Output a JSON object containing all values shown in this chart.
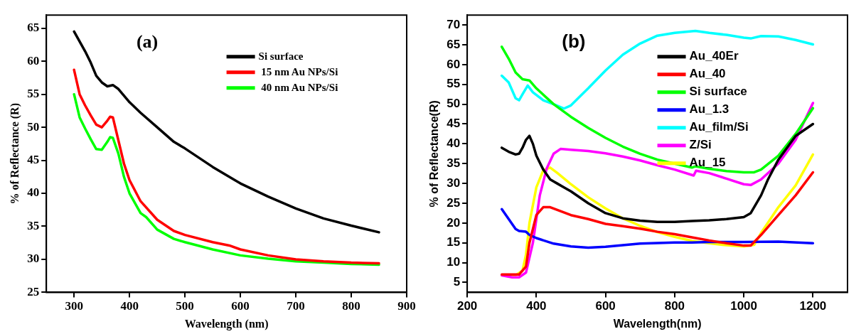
{
  "chart_data": [
    {
      "type": "line",
      "annotations": [
        "(a)"
      ],
      "xlabel": "Wavelength (nm)",
      "ylabel": "% of Reflectance (R)",
      "xlim": [
        250,
        900
      ],
      "xticks": [
        300,
        400,
        500,
        600,
        700,
        800,
        900
      ],
      "ylim": [
        25,
        67
      ],
      "yticks": [
        25,
        30,
        35,
        40,
        45,
        50,
        55,
        60,
        65
      ],
      "legend": "top right",
      "series": [
        {
          "name": "Si surface",
          "color": "#000000",
          "x": [
            300,
            310,
            320,
            330,
            340,
            350,
            360,
            370,
            380,
            400,
            420,
            450,
            480,
            500,
            550,
            600,
            650,
            700,
            750,
            800,
            850
          ],
          "values": [
            64.5,
            63,
            61.5,
            59.8,
            57.8,
            56.8,
            56.2,
            56.4,
            55.8,
            53.8,
            52.2,
            50,
            47.8,
            46.8,
            44,
            41.5,
            39.5,
            37.7,
            36.2,
            35.1,
            34.1
          ]
        },
        {
          "name": " 15 nm Au NPs/Si",
          "color": "#ff0000",
          "x": [
            300,
            310,
            320,
            330,
            340,
            350,
            360,
            365,
            370,
            380,
            390,
            400,
            420,
            450,
            480,
            500,
            550,
            580,
            600,
            650,
            700,
            750,
            800,
            850
          ],
          "values": [
            58.7,
            55,
            53.3,
            51.8,
            50.4,
            50,
            51,
            51.6,
            51.5,
            48,
            44.5,
            42,
            38.8,
            36,
            34.3,
            33.7,
            32.6,
            32.1,
            31.5,
            30.6,
            30,
            29.7,
            29.5,
            29.4
          ]
        },
        {
          "name": " 40 nm Au NPs/Si",
          "color": "#00ff00",
          "x": [
            300,
            310,
            320,
            330,
            340,
            350,
            360,
            365,
            370,
            380,
            390,
            400,
            420,
            430,
            450,
            480,
            500,
            550,
            600,
            650,
            700,
            750,
            800,
            850
          ],
          "values": [
            55,
            51.5,
            49.8,
            48.2,
            46.7,
            46.6,
            47.8,
            48.5,
            48.4,
            46,
            42.5,
            40,
            37,
            36.4,
            34.5,
            33.1,
            32.6,
            31.5,
            30.6,
            30.1,
            29.7,
            29.5,
            29.3,
            29.2
          ]
        }
      ]
    },
    {
      "type": "line",
      "annotations": [
        "(b)"
      ],
      "xlabel": "Wavelength(nm)",
      "ylabel": "% of Reflectance(R)",
      "xlim": [
        200,
        1300
      ],
      "xticks": [
        200,
        400,
        600,
        800,
        1000,
        1200
      ],
      "ylim": [
        2.5,
        72.5
      ],
      "yticks": [
        5,
        10,
        15,
        20,
        25,
        30,
        35,
        40,
        45,
        50,
        55,
        60,
        65,
        70
      ],
      "legend": "top right",
      "series": [
        {
          "name": "Au_40Er",
          "color": "#000000",
          "x": [
            300,
            320,
            340,
            350,
            360,
            370,
            380,
            390,
            400,
            420,
            440,
            460,
            480,
            500,
            550,
            600,
            650,
            700,
            750,
            800,
            850,
            900,
            950,
            1000,
            1020,
            1050,
            1070,
            1100,
            1150,
            1200
          ],
          "values": [
            39,
            38,
            37.3,
            37.5,
            39,
            41,
            42,
            40,
            37,
            33.5,
            31,
            30,
            29,
            28,
            25,
            22.5,
            21.2,
            20.6,
            20.3,
            20.3,
            20.5,
            20.7,
            21,
            21.5,
            22.5,
            27,
            31,
            36,
            42,
            45
          ]
        },
        {
          "name": "Au_40",
          "color": "#ff0000",
          "x": [
            300,
            350,
            370,
            380,
            400,
            420,
            440,
            500,
            550,
            600,
            650,
            700,
            750,
            800,
            850,
            900,
            950,
            1000,
            1020,
            1050,
            1100,
            1150,
            1200
          ],
          "values": [
            7,
            7,
            9,
            15,
            22,
            24,
            24,
            22,
            21,
            19.8,
            19.2,
            18.6,
            17.8,
            17.2,
            16.4,
            15.6,
            14.9,
            14.3,
            14.3,
            17,
            22,
            27,
            32.8
          ]
        },
        {
          "name": "Si surface",
          "color": "#00ff00",
          "x": [
            300,
            320,
            340,
            360,
            380,
            400,
            450,
            500,
            550,
            600,
            650,
            700,
            750,
            800,
            850,
            860,
            900,
            950,
            1000,
            1030,
            1050,
            1100,
            1150,
            1200
          ],
          "values": [
            64.5,
            61.5,
            58,
            56.3,
            56,
            54,
            50,
            46.8,
            44,
            41.5,
            39.3,
            37.5,
            36,
            35,
            34,
            34.3,
            33.7,
            33.1,
            32.8,
            32.8,
            33.5,
            37,
            42.5,
            49
          ]
        },
        {
          "name": "Au_1.3",
          "color": "#0000ff",
          "x": [
            300,
            320,
            340,
            350,
            370,
            380,
            400,
            450,
            500,
            550,
            600,
            650,
            700,
            800,
            850,
            900,
            1000,
            1100,
            1200
          ],
          "values": [
            23.5,
            21,
            18.5,
            18,
            17.8,
            17,
            16.2,
            14.8,
            14.1,
            13.8,
            14,
            14.4,
            14.8,
            15.1,
            15.1,
            15.2,
            15.2,
            15.3,
            14.9
          ]
        },
        {
          "name": "Au_film/Si",
          "color": "#00ffff",
          "x": [
            300,
            320,
            340,
            350,
            360,
            375,
            390,
            420,
            450,
            480,
            500,
            550,
            600,
            650,
            700,
            750,
            800,
            860,
            900,
            950,
            1000,
            1020,
            1050,
            1100,
            1150,
            1200
          ],
          "values": [
            57.2,
            55.5,
            51.5,
            51,
            52.5,
            54.7,
            53,
            51,
            50,
            48.9,
            49.7,
            54,
            58.5,
            62.5,
            65.3,
            67.3,
            68,
            68.5,
            68,
            67.5,
            66.8,
            66.6,
            67.2,
            67.1,
            66.2,
            65.1
          ]
        },
        {
          "name": "Z/Si",
          "color": "#ff00ff",
          "x": [
            300,
            330,
            350,
            370,
            390,
            410,
            430,
            450,
            470,
            500,
            550,
            600,
            650,
            700,
            750,
            800,
            855,
            862,
            900,
            950,
            1000,
            1020,
            1050,
            1100,
            1150,
            1200
          ],
          "values": [
            6.8,
            6.3,
            6.3,
            7.5,
            15,
            27,
            33.8,
            37.5,
            38.7,
            38.5,
            38.2,
            37.6,
            36.8,
            35.8,
            34.6,
            33.5,
            32,
            33.2,
            32.6,
            31.2,
            29.8,
            29.6,
            31,
            35,
            41,
            50.3
          ]
        },
        {
          "name": "Au_15",
          "color": "#ffff00",
          "x": [
            300,
            340,
            360,
            370,
            380,
            400,
            420,
            440,
            460,
            500,
            550,
            600,
            650,
            700,
            750,
            800,
            850,
            900,
            950,
            1000,
            1030,
            1050,
            1100,
            1150,
            1200
          ],
          "values": [
            6.8,
            6.8,
            8,
            12,
            20,
            29,
            33.3,
            34,
            32.7,
            29.8,
            26.5,
            23.7,
            21.2,
            19.3,
            17.7,
            16.5,
            15.5,
            14.9,
            14.4,
            14.1,
            14.5,
            17.5,
            24,
            29.5,
            37.3
          ]
        }
      ]
    }
  ]
}
